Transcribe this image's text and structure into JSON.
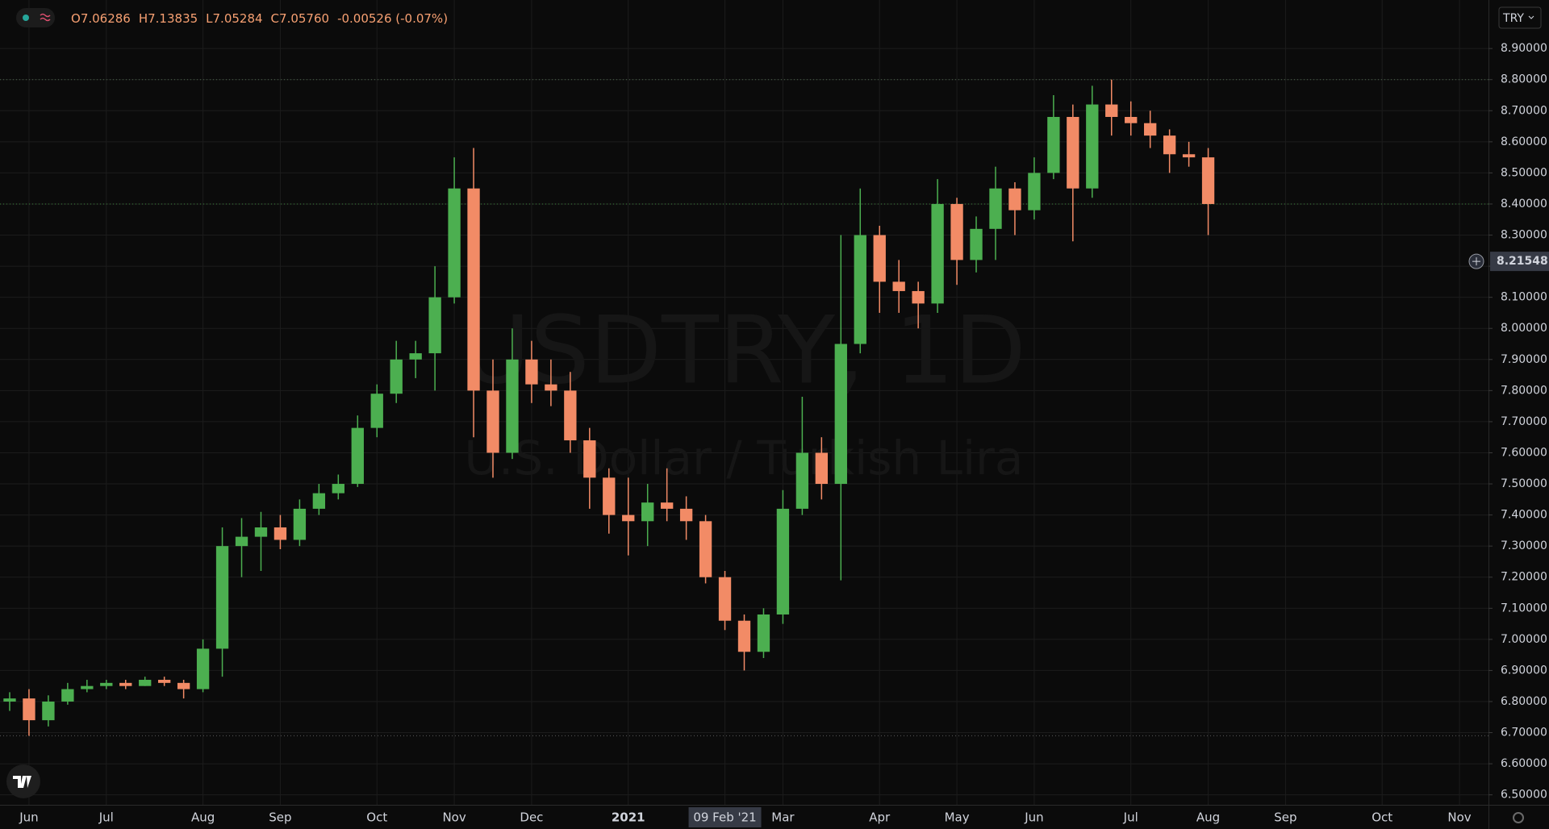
{
  "header": {
    "ohlc": [
      {
        "label": "O",
        "value": "7.06286"
      },
      {
        "label": "H",
        "value": "7.13835"
      },
      {
        "label": "L",
        "value": "7.05284"
      },
      {
        "label": "C",
        "value": "7.05760"
      }
    ],
    "change": "-0.00526 (-0.07%)",
    "currency": "TRY"
  },
  "chart_data": {
    "type": "candlestick",
    "title": "USDTRY, 1D",
    "subtitle": "U.S. Dollar / Turkish Lira",
    "categories": [
      null,
      "Jun",
      null,
      null,
      null,
      "Jul",
      null,
      null,
      null,
      null,
      "Aug",
      null,
      null,
      null,
      "Sep",
      null,
      null,
      null,
      null,
      "Oct",
      null,
      null,
      null,
      "Nov",
      null,
      null,
      null,
      "Dec",
      null,
      null,
      null,
      null,
      "2021",
      null,
      null,
      null,
      null,
      "09 Feb '21",
      null,
      null,
      "Mar",
      null,
      null,
      null,
      null,
      "Apr",
      null,
      null,
      null,
      "May",
      null,
      null,
      null,
      "Jun",
      null,
      null,
      null,
      null,
      "Jul",
      null,
      null,
      null,
      "Aug",
      null,
      null,
      null,
      "Sep",
      null,
      null,
      null,
      null,
      "Oct",
      null,
      null,
      null,
      "Nov",
      null
    ],
    "open": [
      6.8,
      6.81,
      6.74,
      6.8,
      6.84,
      6.85,
      6.86,
      6.85,
      6.87,
      6.86,
      6.84,
      6.97,
      7.3,
      7.33,
      7.36,
      7.32,
      7.42,
      7.47,
      7.5,
      7.68,
      7.79,
      7.9,
      7.92,
      8.1,
      8.45,
      7.8,
      7.6,
      7.9,
      7.82,
      7.8,
      7.64,
      7.52,
      7.4,
      7.38,
      7.44,
      7.42,
      7.38,
      7.2,
      7.06,
      6.96,
      7.08,
      7.42,
      7.6,
      7.5,
      7.95,
      8.3,
      8.15,
      8.12,
      8.08,
      8.4,
      8.22,
      8.32,
      8.45,
      8.38,
      8.5,
      8.68,
      8.45,
      8.72,
      8.68,
      8.66,
      8.62,
      8.56,
      8.55,
      null,
      null,
      null,
      null,
      null,
      null,
      null,
      null,
      null,
      null,
      null,
      null,
      null,
      null
    ],
    "high": [
      6.83,
      6.84,
      6.82,
      6.86,
      6.87,
      6.87,
      6.87,
      6.88,
      6.88,
      6.87,
      7.0,
      7.36,
      7.39,
      7.41,
      7.4,
      7.45,
      7.5,
      7.53,
      7.72,
      7.82,
      7.96,
      7.96,
      8.2,
      8.55,
      8.58,
      7.9,
      8.0,
      7.96,
      7.9,
      7.86,
      7.68,
      7.55,
      7.52,
      7.5,
      7.55,
      7.46,
      7.4,
      7.22,
      7.08,
      7.1,
      7.48,
      7.78,
      7.65,
      8.3,
      8.45,
      8.33,
      8.22,
      8.15,
      8.48,
      8.42,
      8.36,
      8.52,
      8.47,
      8.55,
      8.75,
      8.72,
      8.78,
      8.8,
      8.73,
      8.7,
      8.64,
      8.6,
      8.58,
      null,
      null,
      null,
      null,
      null,
      null,
      null,
      null,
      null,
      null,
      null,
      null,
      null,
      null
    ],
    "low": [
      6.77,
      6.69,
      6.72,
      6.79,
      6.83,
      6.84,
      6.84,
      6.85,
      6.85,
      6.81,
      6.83,
      6.88,
      7.2,
      7.22,
      7.29,
      7.3,
      7.4,
      7.45,
      7.49,
      7.65,
      7.76,
      7.84,
      7.8,
      8.08,
      7.65,
      7.52,
      7.58,
      7.76,
      7.75,
      7.6,
      7.42,
      7.34,
      7.27,
      7.3,
      7.38,
      7.32,
      7.18,
      7.03,
      6.9,
      6.94,
      7.05,
      7.4,
      7.45,
      7.19,
      7.92,
      8.05,
      8.05,
      8.0,
      8.05,
      8.14,
      8.18,
      8.22,
      8.3,
      8.35,
      8.48,
      8.28,
      8.42,
      8.62,
      8.62,
      8.58,
      8.5,
      8.52,
      8.3,
      null,
      null,
      null,
      null,
      null,
      null,
      null,
      null,
      null,
      null,
      null,
      null,
      null,
      null
    ],
    "close": [
      6.81,
      6.74,
      6.8,
      6.84,
      6.85,
      6.86,
      6.85,
      6.87,
      6.86,
      6.84,
      6.97,
      7.3,
      7.33,
      7.36,
      7.32,
      7.42,
      7.47,
      7.5,
      7.68,
      7.79,
      7.9,
      7.92,
      8.1,
      8.45,
      7.8,
      7.6,
      7.9,
      7.82,
      7.8,
      7.64,
      7.52,
      7.4,
      7.38,
      7.44,
      7.42,
      7.38,
      7.2,
      7.06,
      6.96,
      7.08,
      7.42,
      7.6,
      7.5,
      7.95,
      8.3,
      8.15,
      8.12,
      8.08,
      8.4,
      8.22,
      8.32,
      8.45,
      8.38,
      8.5,
      8.68,
      8.45,
      8.72,
      8.68,
      8.66,
      8.62,
      8.56,
      8.55,
      8.4,
      null,
      null,
      null,
      null,
      null,
      null,
      null,
      null,
      null,
      null,
      null,
      null,
      null,
      null
    ],
    "up_color": "#4caf50",
    "down_color": "#f28b66",
    "ylim": [
      6.468,
      9.056
    ],
    "yticks": [
      {
        "value": 6.5,
        "label": "6.50000"
      },
      {
        "value": 6.6,
        "label": "6.60000"
      },
      {
        "value": 6.7,
        "label": "6.70000"
      },
      {
        "value": 6.8,
        "label": "6.80000"
      },
      {
        "value": 6.9,
        "label": "6.90000"
      },
      {
        "value": 7.0,
        "label": "7.00000"
      },
      {
        "value": 7.1,
        "label": "7.10000"
      },
      {
        "value": 7.2,
        "label": "7.20000"
      },
      {
        "value": 7.3,
        "label": "7.30000"
      },
      {
        "value": 7.4,
        "label": "7.40000"
      },
      {
        "value": 7.5,
        "label": "7.50000"
      },
      {
        "value": 7.6,
        "label": "7.60000"
      },
      {
        "value": 7.7,
        "label": "7.70000"
      },
      {
        "value": 7.8,
        "label": "7.80000"
      },
      {
        "value": 7.9,
        "label": "7.90000"
      },
      {
        "value": 8.0,
        "label": "8.00000"
      },
      {
        "value": 8.1,
        "label": "8.10000"
      },
      {
        "value": 8.2,
        "label": "8.20000"
      },
      {
        "value": 8.3,
        "label": "8.30000"
      },
      {
        "value": 8.4,
        "label": "8.40000"
      },
      {
        "value": 8.5,
        "label": "8.50000"
      },
      {
        "value": 8.6,
        "label": "8.60000"
      },
      {
        "value": 8.7,
        "label": "8.70000"
      },
      {
        "value": 8.8,
        "label": "8.80000"
      },
      {
        "value": 8.9,
        "label": "8.90000"
      }
    ],
    "grid": true,
    "price_lines": [
      {
        "value": 8.8,
        "color": "#4d6b4d"
      },
      {
        "value": 8.4,
        "color": "#3f8a3f"
      },
      {
        "value": 6.69,
        "color": "#5c5c5c"
      }
    ],
    "crosshair": {
      "category": 37,
      "price": 8.21548
    }
  }
}
